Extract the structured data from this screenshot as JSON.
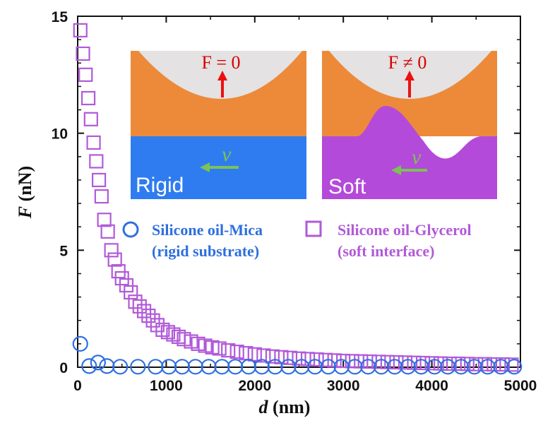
{
  "colors": {
    "mica": "#2e6fe0",
    "glycerol": "#b15ad9",
    "oil": "#ec8a3a",
    "sphere": "#e4e2e2",
    "rigid": "#2f7cf0",
    "soft": "#b44ad9",
    "force_arrow": "#ec1010",
    "velocity_arrow": "#7cc257"
  },
  "axes": {
    "xlabel_italic": "d",
    "xlabel_unit": " (nm)",
    "ylabel_italic": "F",
    "ylabel_unit": " (nN)",
    "x_ticks": [
      "0",
      "1000",
      "2000",
      "3000",
      "4000",
      "5000"
    ],
    "y_ticks": [
      "0",
      "5",
      "10",
      "15"
    ]
  },
  "legend": {
    "mica_line1": "Silicone oil-Mica",
    "mica_line2": "(rigid substrate)",
    "glycerol_line1": "Silicone oil-Glycerol",
    "glycerol_line2": "(soft interface)"
  },
  "insets": {
    "rigid_label": "Rigid",
    "soft_label": "Soft",
    "rigid_force": "F = 0",
    "soft_force": "F ≠ 0",
    "velocity": "v"
  },
  "chart_data": {
    "type": "scatter",
    "xlabel": "d (nm)",
    "ylabel": "F (nN)",
    "xlim": [
      0,
      5000
    ],
    "ylim": [
      0,
      15
    ],
    "grid": false,
    "legend_placement": "center",
    "series": [
      {
        "name": "Silicone oil-Mica (rigid substrate)",
        "marker": "circle",
        "x": [
          30,
          130,
          230,
          330,
          480,
          680,
          880,
          1030,
          1180,
          1330,
          1480,
          1630,
          1780,
          1930,
          2080,
          2230,
          2380,
          2530,
          2680,
          2830,
          2980,
          3130,
          3280,
          3430,
          3580,
          3730,
          3880,
          4030,
          4180,
          4330,
          4480,
          4630,
          4780,
          4930
        ],
        "y": [
          1.0,
          0.05,
          0.2,
          0.05,
          0.02,
          0.02,
          0.02,
          0.02,
          0.02,
          0.02,
          0.02,
          0.02,
          0.02,
          0.02,
          0.02,
          0.02,
          0.02,
          0.02,
          0.02,
          0.02,
          0.02,
          0.02,
          0.02,
          0.02,
          0.02,
          0.02,
          0.02,
          0.02,
          0.02,
          0.02,
          0.02,
          0.02,
          0.02,
          0.02
        ]
      },
      {
        "name": "Silicone oil-Glycerol (soft interface)",
        "marker": "square",
        "x": [
          30,
          60,
          90,
          120,
          150,
          180,
          210,
          240,
          270,
          300,
          340,
          380,
          420,
          460,
          500,
          550,
          600,
          650,
          700,
          750,
          800,
          850,
          900,
          960,
          1020,
          1080,
          1140,
          1200,
          1280,
          1360,
          1440,
          1520,
          1600,
          1700,
          1800,
          1900,
          2000,
          2100,
          2200,
          2300,
          2400,
          2500,
          2600,
          2700,
          2800,
          2900,
          3000,
          3100,
          3200,
          3300,
          3400,
          3500,
          3600,
          3700,
          3800,
          3900,
          4000,
          4100,
          4200,
          4300,
          4400,
          4500,
          4600,
          4700,
          4800,
          4900
        ],
        "y": [
          14.4,
          13.4,
          12.5,
          11.5,
          10.6,
          9.6,
          8.8,
          8.0,
          7.3,
          6.3,
          5.8,
          5.0,
          4.6,
          4.1,
          3.8,
          3.5,
          3.2,
          2.8,
          2.6,
          2.4,
          2.2,
          2.0,
          1.8,
          1.6,
          1.5,
          1.4,
          1.3,
          1.2,
          1.1,
          1.0,
          0.92,
          0.85,
          0.8,
          0.72,
          0.66,
          0.6,
          0.55,
          0.5,
          0.46,
          0.43,
          0.4,
          0.37,
          0.35,
          0.33,
          0.31,
          0.29,
          0.27,
          0.26,
          0.25,
          0.24,
          0.23,
          0.22,
          0.21,
          0.2,
          0.19,
          0.18,
          0.17,
          0.16,
          0.15,
          0.15,
          0.14,
          0.13,
          0.13,
          0.12,
          0.12,
          0.11
        ]
      }
    ]
  }
}
